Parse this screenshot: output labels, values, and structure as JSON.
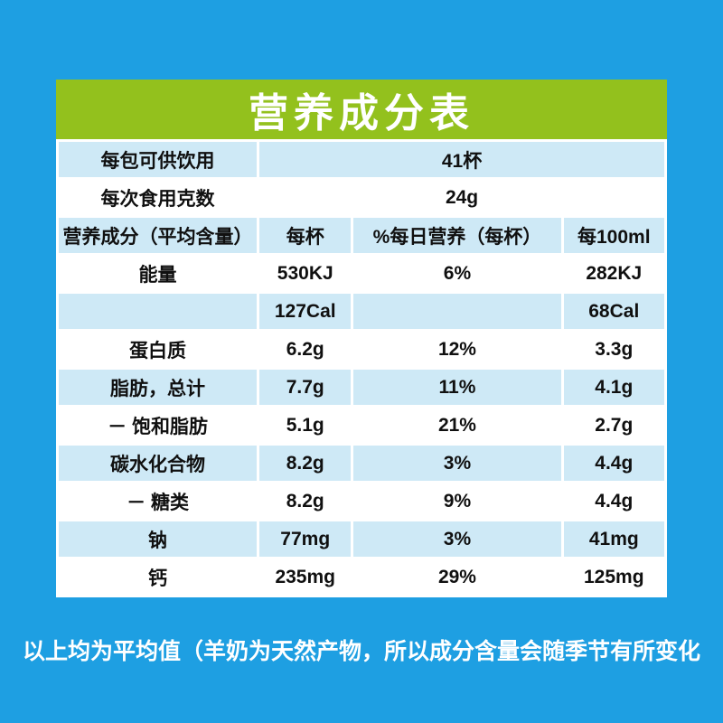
{
  "title": "营养成分表",
  "footnote": "以上均为平均值（羊奶为天然产物，所以成分含量会随季节有所变化",
  "table": {
    "info_rows": [
      {
        "label": "每包可供饮用",
        "value": "41杯"
      },
      {
        "label": "每次食用克数",
        "value": "24g"
      }
    ],
    "columns": [
      "营养成分（平均含量）",
      "每杯",
      "%每日营养（每杯）",
      "每100ml"
    ],
    "rows": [
      {
        "label": "能量",
        "per_cup": "530KJ",
        "daily_percent": "6%",
        "per_100ml": "282KJ"
      },
      {
        "label": "",
        "per_cup": "127Cal",
        "daily_percent": "",
        "per_100ml": "68Cal"
      },
      {
        "label": "蛋白质",
        "per_cup": "6.2g",
        "daily_percent": "12%",
        "per_100ml": "3.3g"
      },
      {
        "label": "脂肪，总计",
        "per_cup": "7.7g",
        "daily_percent": "11%",
        "per_100ml": "4.1g"
      },
      {
        "label": "－ 饱和脂肪",
        "per_cup": "5.1g",
        "daily_percent": "21%",
        "per_100ml": "2.7g"
      },
      {
        "label": "碳水化合物",
        "per_cup": "8.2g",
        "daily_percent": "3%",
        "per_100ml": "4.4g"
      },
      {
        "label": "－ 糖类",
        "per_cup": "8.2g",
        "daily_percent": "9%",
        "per_100ml": "4.4g"
      },
      {
        "label": "钠",
        "per_cup": "77mg",
        "daily_percent": "3%",
        "per_100ml": "41mg"
      },
      {
        "label": "钙",
        "per_cup": "235mg",
        "daily_percent": "29%",
        "per_100ml": "125mg"
      }
    ],
    "colors": {
      "background_blue": "#1E9FE2",
      "header_green": "#93C11D",
      "row_light_blue": "#CEE9F6",
      "row_white": "#FFFFFF",
      "text": "#101010",
      "title_text": "#FFFFFF"
    }
  }
}
